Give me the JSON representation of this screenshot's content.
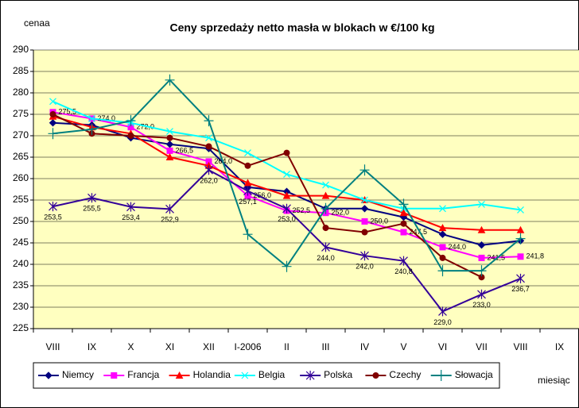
{
  "chart_data": {
    "type": "line",
    "title": "Ceny sprzedaży netto masła w blokach w €/100 kg",
    "y_label": "cenaa",
    "x_label": "miesiąc",
    "categories": [
      "VIII",
      "IX",
      "X",
      "XI",
      "XII",
      "I-2006",
      "II",
      "III",
      "IV",
      "V",
      "VI",
      "VII",
      "VIII",
      "IX"
    ],
    "ylim": [
      225,
      290
    ],
    "yticks": [
      225,
      230,
      235,
      240,
      245,
      250,
      255,
      260,
      265,
      270,
      275,
      280,
      285,
      290
    ],
    "grid": true,
    "legend": "bottom",
    "series": [
      {
        "name": "Niemcy",
        "color": "#000080",
        "marker": "diamond",
        "values": [
          273,
          272.5,
          269.5,
          268,
          267,
          258,
          257,
          253,
          253,
          251,
          247,
          244.5,
          245.5,
          null
        ]
      },
      {
        "name": "Francja",
        "color": "#ff00ff",
        "marker": "square",
        "values": [
          275.5,
          274,
          272,
          266.5,
          264,
          256,
          252.5,
          252,
          250,
          247.5,
          244,
          241.5,
          241.8,
          null
        ],
        "value_labels": [
          "275,5",
          "274,0",
          "272,0",
          "266,5",
          "264,0",
          "256,0",
          "252,5",
          "252,0",
          "250,0",
          "247,5",
          "244,0",
          "241,5",
          "241,8",
          null
        ]
      },
      {
        "name": "Holandia",
        "color": "#ff0000",
        "marker": "triangle",
        "values": [
          274.5,
          272,
          270.5,
          265,
          263,
          259,
          256,
          256,
          255,
          252,
          248.5,
          248,
          248,
          null
        ]
      },
      {
        "name": "Belgia",
        "color": "#00ffff",
        "marker": "x",
        "values": [
          278,
          274,
          273,
          271,
          269.5,
          266,
          261,
          258.5,
          255,
          253,
          253,
          254,
          252.7,
          null
        ]
      },
      {
        "name": "Polska",
        "color": "#330099",
        "marker": "star",
        "values": [
          253.5,
          255.5,
          253.4,
          252.9,
          262,
          257.1,
          253,
          244,
          242,
          240.8,
          229,
          233,
          236.7,
          null
        ],
        "value_labels": [
          "253,5",
          "255,5",
          "253,4",
          "252,9",
          "262,0",
          "257,1",
          "253,0",
          "244,0",
          "242,0",
          "240,8",
          "229,0",
          "233,0",
          "236,7",
          null
        ]
      },
      {
        "name": "Czechy",
        "color": "#800000",
        "marker": "circle",
        "values": [
          275,
          270.5,
          270,
          269.5,
          267.5,
          263,
          266,
          248.5,
          247.5,
          249.5,
          241.5,
          237,
          null,
          null
        ]
      },
      {
        "name": "Słowacja",
        "color": "#008080",
        "marker": "plus",
        "values": [
          270.5,
          271.5,
          273.5,
          283,
          273.5,
          247,
          239.5,
          253,
          262,
          254,
          238.5,
          238.5,
          246,
          null
        ]
      }
    ]
  }
}
